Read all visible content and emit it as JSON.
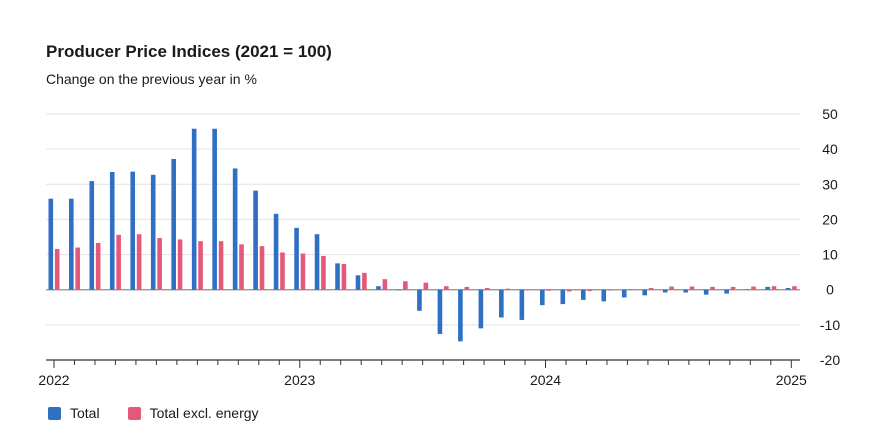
{
  "chart_data": {
    "type": "bar",
    "title": "Producer Price Indices (2021 = 100)",
    "subtitle": "Change on the previous year in %",
    "xlabel": "",
    "ylabel": "",
    "ylim": [
      -20,
      50
    ],
    "yticks": [
      "50",
      "40",
      "30",
      "20",
      "10",
      "0",
      "-10",
      "-20"
    ],
    "ytick_values": [
      50,
      40,
      30,
      20,
      10,
      0,
      -10,
      -20
    ],
    "grid": true,
    "legend_position": "bottom-left",
    "x_year_labels": [
      "2022",
      "2023",
      "2024",
      "2025"
    ],
    "x_year_label_month_index": [
      0,
      12,
      24,
      36
    ],
    "categories": [
      "2022-01",
      "2022-02",
      "2022-03",
      "2022-04",
      "2022-05",
      "2022-06",
      "2022-07",
      "2022-08",
      "2022-09",
      "2022-10",
      "2022-11",
      "2022-12",
      "2023-01",
      "2023-02",
      "2023-03",
      "2023-04",
      "2023-05",
      "2023-06",
      "2023-07",
      "2023-08",
      "2023-09",
      "2023-10",
      "2023-11",
      "2023-12",
      "2024-01",
      "2024-02",
      "2024-03",
      "2024-04",
      "2024-05",
      "2024-06",
      "2024-07",
      "2024-08",
      "2024-09",
      "2024-10",
      "2024-11",
      "2024-12",
      "2025-01"
    ],
    "series": [
      {
        "name": "Total",
        "color": "#2f6fc4",
        "values": [
          25.9,
          25.9,
          30.9,
          33.5,
          33.6,
          32.7,
          37.2,
          45.8,
          45.8,
          34.5,
          28.2,
          21.6,
          17.6,
          15.8,
          7.5,
          4.1,
          1.0,
          -0.1,
          -6.0,
          -12.6,
          -14.7,
          -11.0,
          -7.9,
          -8.6,
          -4.4,
          -4.1,
          -2.9,
          -3.3,
          -2.2,
          -1.6,
          -0.8,
          -0.8,
          -1.4,
          -1.1,
          0.1,
          0.8,
          0.5
        ]
      },
      {
        "name": "Total excl. energy",
        "color": "#e4587a",
        "values": [
          11.6,
          12.0,
          13.3,
          15.6,
          15.8,
          14.7,
          14.3,
          13.8,
          13.8,
          12.9,
          12.4,
          10.6,
          10.3,
          9.6,
          7.3,
          4.8,
          3.0,
          2.4,
          2.0,
          1.0,
          0.8,
          0.5,
          0.3,
          0.0,
          -0.3,
          -0.5,
          -0.4,
          -0.2,
          0.2,
          0.5,
          0.9,
          0.9,
          0.8,
          0.8,
          0.9,
          1.0,
          1.0
        ]
      }
    ]
  },
  "legend": {
    "items": [
      {
        "label": "Total",
        "color": "#2f6fc4"
      },
      {
        "label": "Total excl. energy",
        "color": "#e4587a"
      }
    ]
  }
}
